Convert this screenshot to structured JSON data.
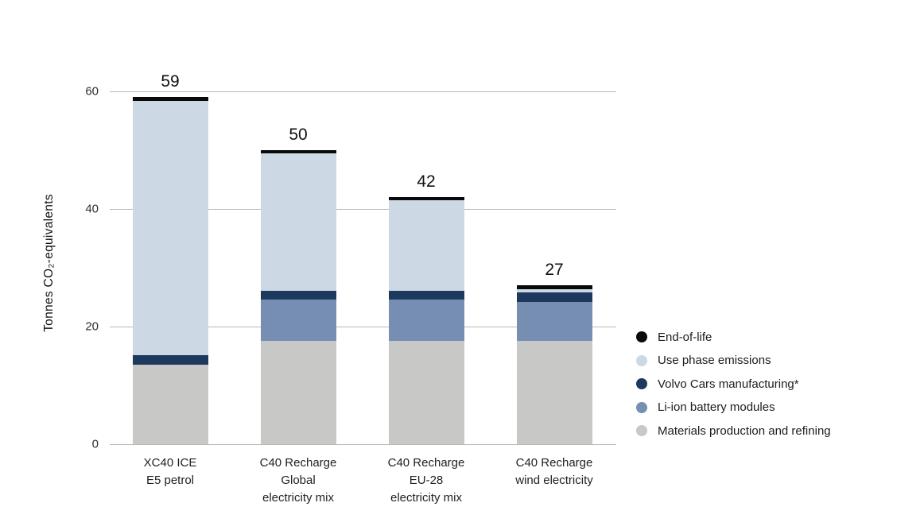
{
  "chart_data": {
    "type": "bar",
    "stacked": true,
    "title": "",
    "xlabel": "",
    "ylabel": "Tonnes CO₂-equivalents",
    "ylim": [
      0,
      60
    ],
    "yticks": [
      0,
      20,
      40,
      60
    ],
    "grid": true,
    "legend_position": "right",
    "categories": [
      "XC40 ICE\nE5 petrol",
      "C40 Recharge\nGlobal\nelectricity mix",
      "C40 Recharge\nEU-28\nelectricity mix",
      "C40 Recharge\nwind electricity"
    ],
    "series": [
      {
        "name": "Materials production and refining",
        "color": "#c8c8c6",
        "values": [
          13.5,
          17.5,
          17.5,
          17.5
        ]
      },
      {
        "name": "Li-ion battery modules",
        "color": "#758eb2",
        "values": [
          0,
          7.0,
          7.0,
          6.7
        ]
      },
      {
        "name": "Volvo Cars manufacturing*",
        "color": "#1d3a5e",
        "values": [
          1.6,
          1.5,
          1.5,
          1.6
        ]
      },
      {
        "name": "Use phase emissions",
        "color": "#ccd8e4",
        "values": [
          43.2,
          23.4,
          15.4,
          0.5
        ]
      },
      {
        "name": "End-of-life",
        "color": "#0a0a0a",
        "values": [
          0.7,
          0.6,
          0.6,
          0.7
        ]
      }
    ],
    "totals": [
      59,
      50,
      42,
      27
    ],
    "legend_order": [
      "End-of-life",
      "Use phase emissions",
      "Volvo Cars manufacturing*",
      "Li-ion battery modules",
      "Materials production and refining"
    ]
  }
}
